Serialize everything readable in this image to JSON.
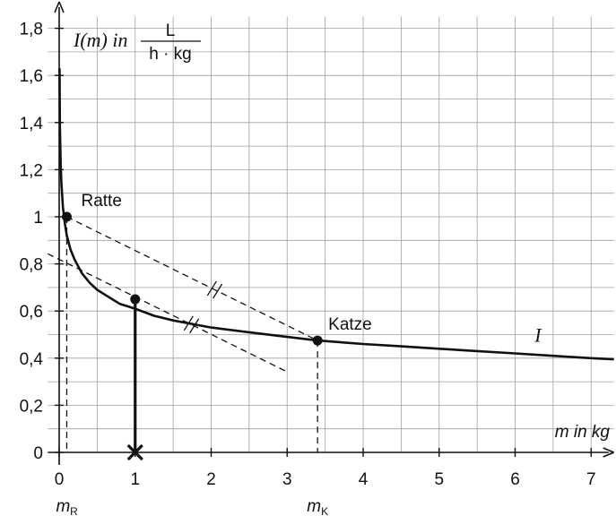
{
  "chart_data": {
    "type": "line",
    "y_axis_label": {
      "prefix": "I(m) in",
      "numerator": "L",
      "denominator": "h · kg"
    },
    "x_axis_label": "m in kg",
    "xlim": [
      -0.15,
      7.3
    ],
    "ylim": [
      0,
      1.85
    ],
    "x_ticks": [
      {
        "value": 0,
        "label": "0"
      },
      {
        "value": 1,
        "label": "1"
      },
      {
        "value": 2,
        "label": "2"
      },
      {
        "value": 3,
        "label": "3"
      },
      {
        "value": 4,
        "label": "4"
      },
      {
        "value": 5,
        "label": "5"
      },
      {
        "value": 6,
        "label": "6"
      },
      {
        "value": 7,
        "label": "7"
      }
    ],
    "y_ticks": [
      {
        "value": 0,
        "label": "0"
      },
      {
        "value": 0.2,
        "label": "0,2"
      },
      {
        "value": 0.4,
        "label": "0,4"
      },
      {
        "value": 0.6,
        "label": "0,6"
      },
      {
        "value": 0.8,
        "label": "0,8"
      },
      {
        "value": 1,
        "label": "1"
      },
      {
        "value": 1.2,
        "label": "1,2"
      },
      {
        "value": 1.4,
        "label": "1,4"
      },
      {
        "value": 1.6,
        "label": "1,6"
      },
      {
        "value": 1.8,
        "label": "1,8"
      }
    ],
    "grid": true,
    "grid_step_x": 0.5,
    "grid_step_y": 0.1,
    "series": [
      {
        "name": "I",
        "label_at": {
          "x": 6.3,
          "y": 0.47
        },
        "x": [
          0.0045,
          0.01,
          0.02,
          0.03,
          0.05,
          0.075,
          0.1,
          0.15,
          0.2,
          0.3,
          0.4,
          0.5,
          0.6,
          0.8,
          1,
          1.25,
          1.5,
          2,
          2.5,
          3,
          3.4,
          4,
          4.5,
          5,
          5.5,
          6,
          6.5,
          7,
          7.3
        ],
        "y": [
          1.63,
          1.38,
          1.22,
          1.14,
          1.04,
          0.97,
          0.92,
          0.86,
          0.82,
          0.76,
          0.72,
          0.69,
          0.67,
          0.63,
          0.61,
          0.58,
          0.56,
          0.53,
          0.51,
          0.49,
          0.475,
          0.46,
          0.45,
          0.44,
          0.43,
          0.42,
          0.41,
          0.4,
          0.395
        ]
      }
    ],
    "points": [
      {
        "name": "Ratte",
        "x": 0.1,
        "y": 1.0
      },
      {
        "name": "",
        "x": 1.0,
        "y": 0.65
      },
      {
        "name": "Katze",
        "x": 3.4,
        "y": 0.475
      }
    ],
    "marked_x": [
      {
        "value": 0.1,
        "label": "m",
        "sub": "R"
      },
      {
        "value": 3.4,
        "label": "m",
        "sub": "K"
      }
    ],
    "cross_at_x": 1.0,
    "secant": {
      "from": {
        "x": 0.1,
        "y": 1.0
      },
      "to": {
        "x": 3.4,
        "y": 0.475
      }
    },
    "tangent": {
      "from": {
        "x": -0.15,
        "y": 0.843
      },
      "to": {
        "x": 3.0,
        "y": 0.342
      }
    }
  }
}
